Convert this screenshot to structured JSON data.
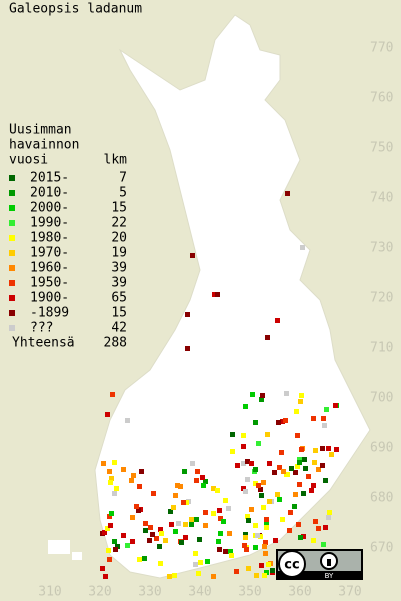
{
  "map": {
    "title": "Galeopsis ladanum",
    "legend": {
      "heading": [
        "Uusimman",
        "havainnon",
        "vuosi"
      ],
      "count_heading": "lkm",
      "items": [
        {
          "label": "2015-",
          "count": 7,
          "color": "#006600"
        },
        {
          "label": "2010-",
          "count": 5,
          "color": "#009900"
        },
        {
          "label": "2000-",
          "count": 15,
          "color": "#00cc00"
        },
        {
          "label": "1990-",
          "count": 22,
          "color": "#33ee33"
        },
        {
          "label": "1980-",
          "count": 20,
          "color": "#ffff00"
        },
        {
          "label": "1970-",
          "count": 19,
          "color": "#ffcc00"
        },
        {
          "label": "1960-",
          "count": 39,
          "color": "#ff8800"
        },
        {
          "label": "1950-",
          "count": 39,
          "color": "#ee3300"
        },
        {
          "label": "1900-",
          "count": 65,
          "color": "#cc0000"
        },
        {
          "label": "-1899",
          "count": 15,
          "color": "#880000"
        },
        {
          "label": "???",
          "count": 42,
          "color": "#cccccc"
        }
      ],
      "total_label": "Yhteensä",
      "total": 288
    },
    "y_labels": [
      770,
      760,
      750,
      740,
      730,
      720,
      710,
      700,
      690,
      680,
      670
    ],
    "x_labels": [
      310,
      320,
      330,
      340,
      350,
      360,
      370
    ],
    "badge": {
      "cc": "cc",
      "by": "BY"
    }
  }
}
